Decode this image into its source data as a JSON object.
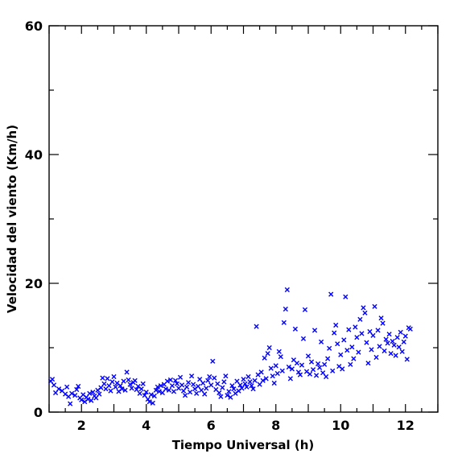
{
  "chart_data": {
    "type": "scatter",
    "title": "",
    "xlabel": "Tiempo Universal (h)",
    "ylabel": "Velocidad del viento (Km/h)",
    "xlim": [
      1,
      13
    ],
    "ylim": [
      0,
      60
    ],
    "xticks": [
      2,
      4,
      6,
      8,
      10,
      12
    ],
    "yticks": [
      0,
      20,
      40,
      60
    ],
    "grid": false,
    "legend": "none",
    "marker": "x",
    "color": "#0000ff",
    "points": [
      [
        1.05,
        4.8
      ],
      [
        1.1,
        5.1
      ],
      [
        1.15,
        4.2
      ],
      [
        1.2,
        3.0
      ],
      [
        1.3,
        3.6
      ],
      [
        1.4,
        3.3
      ],
      [
        1.5,
        2.8
      ],
      [
        1.55,
        3.9
      ],
      [
        1.6,
        2.4
      ],
      [
        1.65,
        1.3
      ],
      [
        1.7,
        2.9
      ],
      [
        1.8,
        2.6
      ],
      [
        1.85,
        3.5
      ],
      [
        1.9,
        4.0
      ],
      [
        1.95,
        2.2
      ],
      [
        2.0,
        1.9
      ],
      [
        2.05,
        2.7
      ],
      [
        2.1,
        1.6
      ],
      [
        2.15,
        2.3
      ],
      [
        2.2,
        2.0
      ],
      [
        2.25,
        2.9
      ],
      [
        2.3,
        1.8
      ],
      [
        2.35,
        3.1
      ],
      [
        2.4,
        2.5
      ],
      [
        2.45,
        2.2
      ],
      [
        2.5,
        3.4
      ],
      [
        2.55,
        2.8
      ],
      [
        2.6,
        3.8
      ],
      [
        2.65,
        5.3
      ],
      [
        2.7,
        4.4
      ],
      [
        2.75,
        3.6
      ],
      [
        2.8,
        5.2
      ],
      [
        2.85,
        4.1
      ],
      [
        2.9,
        3.3
      ],
      [
        2.95,
        4.7
      ],
      [
        3.0,
        5.5
      ],
      [
        3.05,
        3.9
      ],
      [
        3.1,
        4.5
      ],
      [
        3.15,
        3.2
      ],
      [
        3.2,
        4.1
      ],
      [
        3.25,
        3.6
      ],
      [
        3.3,
        4.8
      ],
      [
        3.35,
        3.4
      ],
      [
        3.4,
        6.2
      ],
      [
        3.45,
        5.0
      ],
      [
        3.5,
        4.3
      ],
      [
        3.55,
        3.7
      ],
      [
        3.6,
        4.6
      ],
      [
        3.65,
        4.9
      ],
      [
        3.7,
        3.5
      ],
      [
        3.75,
        4.0
      ],
      [
        3.8,
        2.9
      ],
      [
        3.85,
        3.6
      ],
      [
        3.9,
        4.4
      ],
      [
        3.95,
        2.6
      ],
      [
        4.0,
        3.1
      ],
      [
        4.05,
        2.0
      ],
      [
        4.1,
        1.6
      ],
      [
        4.15,
        2.7
      ],
      [
        4.2,
        1.4
      ],
      [
        4.25,
        2.5
      ],
      [
        4.3,
        3.4
      ],
      [
        4.35,
        3.9
      ],
      [
        4.4,
        3.2
      ],
      [
        4.45,
        4.1
      ],
      [
        4.5,
        3.0
      ],
      [
        4.55,
        4.3
      ],
      [
        4.6,
        3.6
      ],
      [
        4.65,
        4.8
      ],
      [
        4.7,
        3.4
      ],
      [
        4.75,
        5.0
      ],
      [
        4.8,
        4.1
      ],
      [
        4.85,
        3.2
      ],
      [
        4.9,
        4.9
      ],
      [
        4.95,
        4.4
      ],
      [
        5.0,
        3.7
      ],
      [
        5.05,
        5.4
      ],
      [
        5.1,
        4.2
      ],
      [
        5.15,
        3.3
      ],
      [
        5.2,
        2.6
      ],
      [
        5.25,
        3.9
      ],
      [
        5.3,
        4.6
      ],
      [
        5.35,
        3.1
      ],
      [
        5.4,
        5.6
      ],
      [
        5.45,
        4.3
      ],
      [
        5.5,
        3.6
      ],
      [
        5.55,
        2.9
      ],
      [
        5.6,
        4.0
      ],
      [
        5.65,
        5.1
      ],
      [
        5.7,
        3.4
      ],
      [
        5.75,
        4.5
      ],
      [
        5.8,
        2.8
      ],
      [
        5.85,
        3.7
      ],
      [
        5.9,
        4.9
      ],
      [
        5.95,
        5.5
      ],
      [
        6.0,
        4.2
      ],
      [
        6.05,
        7.9
      ],
      [
        6.1,
        5.3
      ],
      [
        6.15,
        3.5
      ],
      [
        6.2,
        4.4
      ],
      [
        6.25,
        3.0
      ],
      [
        6.3,
        2.4
      ],
      [
        6.35,
        3.8
      ],
      [
        6.4,
        4.7
      ],
      [
        6.45,
        5.6
      ],
      [
        6.5,
        2.6
      ],
      [
        6.55,
        3.2
      ],
      [
        6.6,
        2.3
      ],
      [
        6.65,
        4.1
      ],
      [
        6.7,
        3.6
      ],
      [
        6.75,
        2.9
      ],
      [
        6.8,
        4.8
      ],
      [
        6.85,
        3.3
      ],
      [
        6.9,
        4.2
      ],
      [
        6.95,
        3.7
      ],
      [
        7.0,
        5.1
      ],
      [
        7.05,
        4.4
      ],
      [
        7.1,
        3.9
      ],
      [
        7.15,
        5.5
      ],
      [
        7.2,
        4.7
      ],
      [
        7.25,
        4.1
      ],
      [
        7.3,
        3.6
      ],
      [
        7.35,
        4.9
      ],
      [
        7.4,
        13.3
      ],
      [
        7.45,
        5.8
      ],
      [
        7.5,
        4.3
      ],
      [
        7.55,
        6.2
      ],
      [
        7.6,
        4.9
      ],
      [
        7.65,
        8.4
      ],
      [
        7.7,
        5.2
      ],
      [
        7.75,
        9.1
      ],
      [
        7.8,
        10.0
      ],
      [
        7.85,
        6.8
      ],
      [
        7.9,
        5.6
      ],
      [
        7.95,
        4.5
      ],
      [
        8.0,
        7.2
      ],
      [
        8.05,
        6.0
      ],
      [
        8.1,
        9.4
      ],
      [
        8.15,
        8.6
      ],
      [
        8.2,
        6.4
      ],
      [
        8.25,
        13.9
      ],
      [
        8.3,
        16.0
      ],
      [
        8.35,
        19.0
      ],
      [
        8.4,
        7.0
      ],
      [
        8.45,
        5.2
      ],
      [
        8.5,
        6.7
      ],
      [
        8.55,
        8.1
      ],
      [
        8.6,
        12.9
      ],
      [
        8.65,
        7.6
      ],
      [
        8.7,
        6.2
      ],
      [
        8.75,
        5.8
      ],
      [
        8.8,
        7.3
      ],
      [
        8.85,
        11.4
      ],
      [
        8.9,
        15.9
      ],
      [
        8.95,
        6.3
      ],
      [
        9.0,
        8.7
      ],
      [
        9.05,
        5.9
      ],
      [
        9.1,
        7.8
      ],
      [
        9.15,
        6.6
      ],
      [
        9.2,
        12.7
      ],
      [
        9.25,
        5.7
      ],
      [
        9.3,
        7.5
      ],
      [
        9.35,
        6.9
      ],
      [
        9.4,
        10.9
      ],
      [
        9.45,
        6.1
      ],
      [
        9.5,
        7.4
      ],
      [
        9.55,
        5.5
      ],
      [
        9.6,
        8.3
      ],
      [
        9.65,
        9.9
      ],
      [
        9.7,
        18.3
      ],
      [
        9.75,
        6.4
      ],
      [
        9.8,
        12.3
      ],
      [
        9.85,
        13.5
      ],
      [
        9.9,
        10.6
      ],
      [
        9.95,
        7.1
      ],
      [
        10.0,
        8.9
      ],
      [
        10.05,
        6.7
      ],
      [
        10.1,
        11.2
      ],
      [
        10.15,
        17.9
      ],
      [
        10.2,
        9.6
      ],
      [
        10.25,
        12.8
      ],
      [
        10.3,
        7.4
      ],
      [
        10.35,
        10.1
      ],
      [
        10.4,
        8.3
      ],
      [
        10.45,
        13.2
      ],
      [
        10.5,
        11.6
      ],
      [
        10.55,
        9.3
      ],
      [
        10.6,
        14.4
      ],
      [
        10.65,
        12.2
      ],
      [
        10.7,
        16.2
      ],
      [
        10.75,
        15.4
      ],
      [
        10.8,
        10.8
      ],
      [
        10.85,
        7.6
      ],
      [
        10.9,
        12.5
      ],
      [
        10.95,
        9.7
      ],
      [
        11.0,
        11.9
      ],
      [
        11.05,
        16.4
      ],
      [
        11.1,
        8.5
      ],
      [
        11.15,
        12.7
      ],
      [
        11.2,
        10.2
      ],
      [
        11.25,
        14.6
      ],
      [
        11.3,
        13.8
      ],
      [
        11.35,
        9.5
      ],
      [
        11.4,
        11.3
      ],
      [
        11.45,
        10.7
      ],
      [
        11.5,
        12.1
      ],
      [
        11.55,
        9.1
      ],
      [
        11.6,
        11.0
      ],
      [
        11.65,
        10.4
      ],
      [
        11.7,
        8.8
      ],
      [
        11.75,
        11.6
      ],
      [
        11.8,
        10.1
      ],
      [
        11.85,
        12.4
      ],
      [
        11.9,
        9.4
      ],
      [
        11.95,
        10.9
      ],
      [
        12.0,
        11.8
      ],
      [
        12.05,
        8.2
      ],
      [
        12.1,
        13.1
      ],
      [
        12.15,
        12.9
      ]
    ]
  }
}
